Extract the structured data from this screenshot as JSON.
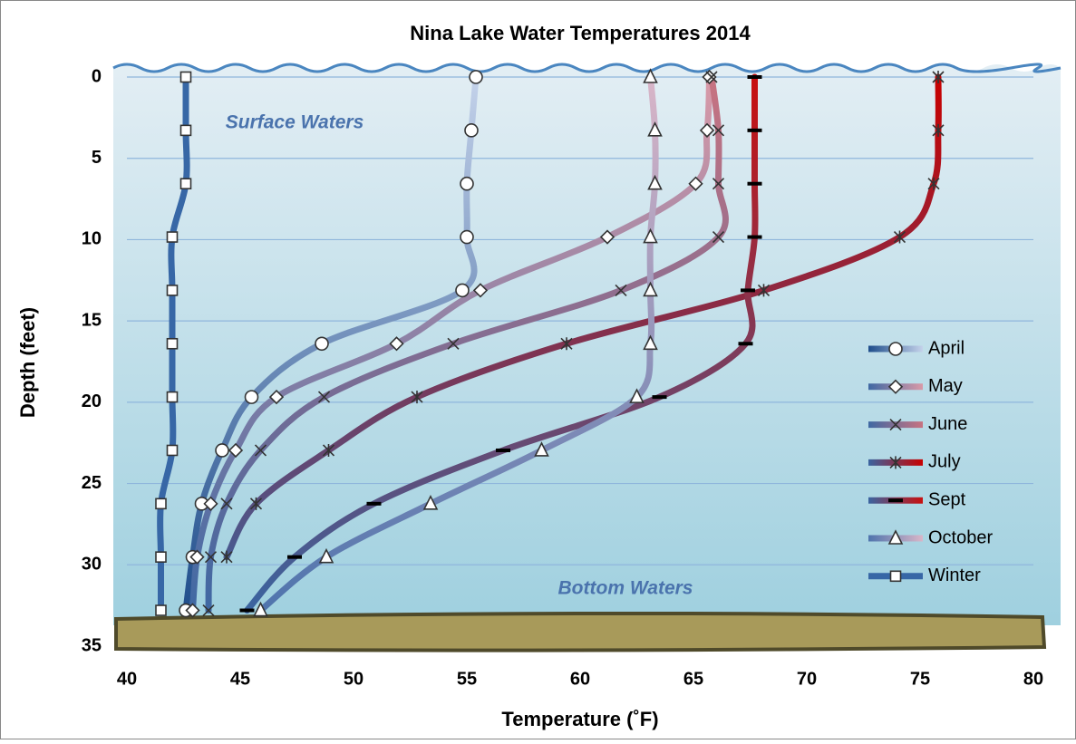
{
  "chart_data": {
    "type": "line",
    "title": "Nina Lake Water Temperatures 2014",
    "x_label": "Temperature  (˚F)",
    "y_label": "Depth (feet)",
    "annotations": [
      "Surface Waters",
      "Bottom Waters"
    ],
    "depths": [
      0,
      3.28,
      6.56,
      9.84,
      13.12,
      16.4,
      19.68,
      22.96,
      26.24,
      29.52,
      32.8
    ],
    "xlim": [
      40,
      80
    ],
    "xticks": [
      40,
      45,
      50,
      55,
      60,
      65,
      70,
      75,
      80
    ],
    "ylim": [
      0,
      35
    ],
    "yticks": [
      0,
      5,
      10,
      15,
      20,
      25,
      30,
      35
    ],
    "y_inverted": true,
    "grid": true,
    "legend": "right",
    "series": [
      {
        "name": "April",
        "marker": "circle",
        "color": [
          "#1f4e8c",
          "#c4d2ea"
        ],
        "values": [
          55.4,
          55.2,
          55.0,
          55.0,
          54.8,
          48.6,
          45.5,
          44.2,
          43.3,
          42.9,
          42.6
        ]
      },
      {
        "name": "May",
        "marker": "diamond",
        "color": [
          "#3f68a3",
          "#d99aa8"
        ],
        "values": [
          65.7,
          65.6,
          65.1,
          61.2,
          55.6,
          51.9,
          46.6,
          44.8,
          43.7,
          43.1,
          42.9
        ]
      },
      {
        "name": "June",
        "marker": "x",
        "color": [
          "#3f68a3",
          "#c87381"
        ],
        "values": [
          65.8,
          66.1,
          66.1,
          66.1,
          61.8,
          54.4,
          48.7,
          45.9,
          44.4,
          43.7,
          43.6
        ]
      },
      {
        "name": "July",
        "marker": "asterisk",
        "color": [
          "#3a64a0",
          "#c80000"
        ],
        "values": [
          75.8,
          75.8,
          75.6,
          74.1,
          68.1,
          59.4,
          52.8,
          48.9,
          45.7,
          44.4,
          null
        ]
      },
      {
        "name": "Sept",
        "marker": "dash",
        "color": [
          "#3a64a0",
          "#c81010"
        ],
        "values": [
          67.7,
          67.7,
          67.7,
          67.7,
          67.4,
          67.3,
          63.5,
          56.6,
          50.9,
          47.4,
          45.3
        ]
      },
      {
        "name": "October",
        "marker": "triangle",
        "color": [
          "#4f74ad",
          "#d9b6c8"
        ],
        "values": [
          63.1,
          63.3,
          63.3,
          63.1,
          63.1,
          63.1,
          62.5,
          58.3,
          53.4,
          48.8,
          45.9
        ]
      },
      {
        "name": "Winter",
        "marker": "square",
        "color": [
          "#3767a6",
          "#3767a6"
        ],
        "values": [
          42.6,
          42.6,
          42.6,
          42.0,
          42.0,
          42.0,
          42.0,
          42.0,
          41.5,
          41.5,
          41.5
        ]
      }
    ]
  }
}
